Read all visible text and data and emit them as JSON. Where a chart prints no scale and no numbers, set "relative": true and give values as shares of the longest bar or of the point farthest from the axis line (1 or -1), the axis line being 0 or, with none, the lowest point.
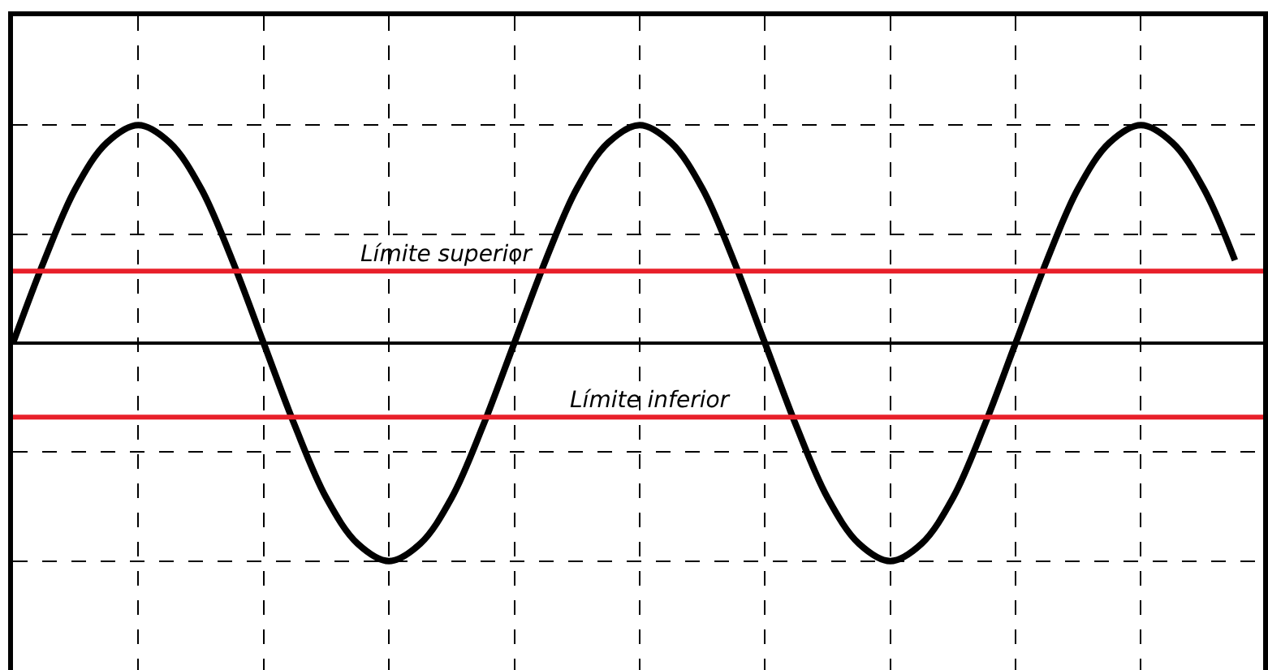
{
  "chart_data": {
    "type": "line",
    "relative": true,
    "categories": [
      null,
      null,
      null,
      null,
      null,
      null,
      null,
      null,
      null,
      null,
      null,
      null,
      null,
      null,
      null,
      null,
      null,
      null,
      null,
      null,
      null,
      null,
      null,
      null,
      null,
      null,
      null,
      null,
      null,
      null,
      null,
      null,
      null,
      null,
      null,
      null,
      null,
      null,
      null,
      null
    ],
    "series": [
      {
        "color": "#000000",
        "values": [
          0,
          0.38,
          0.71,
          0.92,
          1,
          0.92,
          0.71,
          0.38,
          0,
          -0.38,
          -0.71,
          -0.92,
          -1,
          -0.92,
          -0.71,
          -0.38,
          0,
          0.38,
          0.71,
          0.92,
          1,
          0.92,
          0.71,
          0.38,
          0,
          -0.38,
          -0.71,
          -0.92,
          -1,
          -0.92,
          -0.71,
          -0.38,
          0,
          0.38,
          0.71,
          0.92,
          1,
          0.92,
          0.71,
          0.38
        ]
      }
    ],
    "ref_lines": [
      {
        "axis": "y",
        "value": 0.33,
        "label": "Límite superior",
        "color": "#e8202a"
      },
      {
        "axis": "y",
        "value": -0.34,
        "label": "Límite inferior",
        "color": "#e8202a"
      }
    ],
    "grid": true,
    "line_style": "solid",
    "marker": "none"
  }
}
